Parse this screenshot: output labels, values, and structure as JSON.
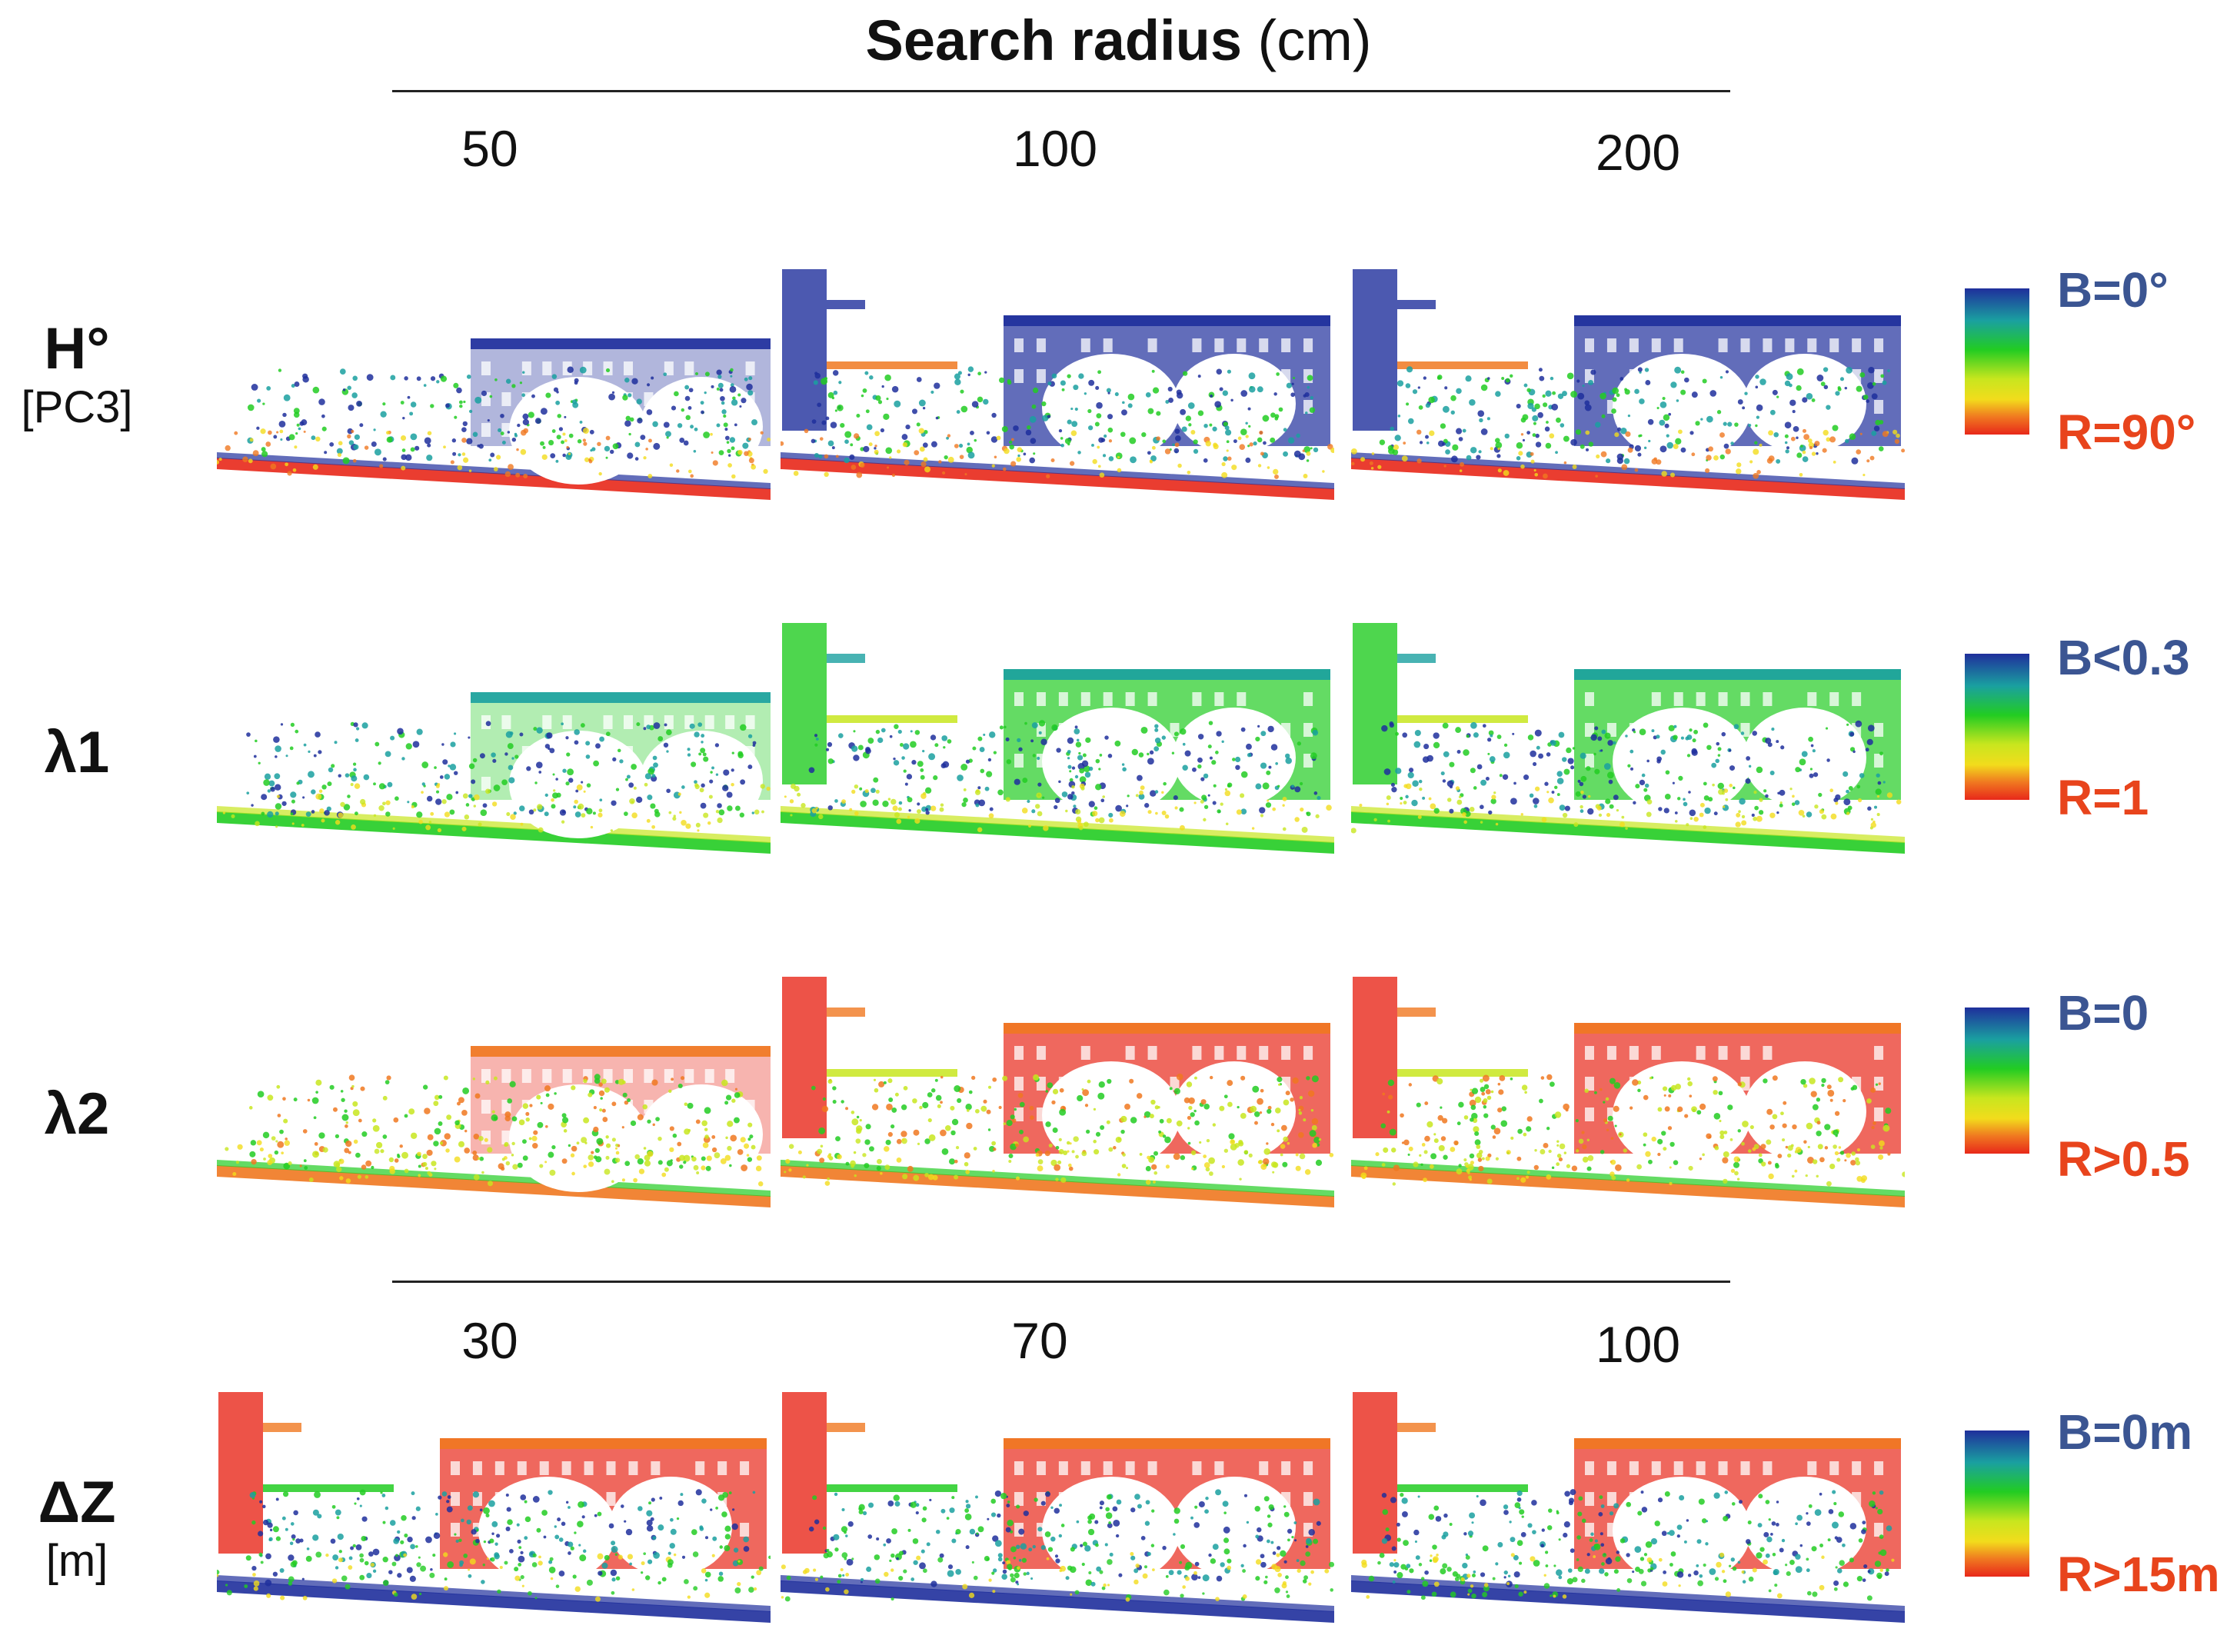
{
  "header": {
    "title_bold": "Search radius",
    "title_unit": "(cm)",
    "radii_top": [
      "50",
      "100",
      "200"
    ],
    "radii_bottom": [
      "30",
      "70",
      "100"
    ]
  },
  "rows": [
    {
      "label": "H°",
      "sublabel": "[PC3]",
      "legend_top": "B=0°",
      "legend_bottom": "R=90°",
      "scheme": "h"
    },
    {
      "label": "λ1",
      "sublabel": "",
      "legend_top": "B<0.3",
      "legend_bottom": "R=1",
      "scheme": "l1"
    },
    {
      "label": "λ2",
      "sublabel": "",
      "legend_top": "B=0",
      "legend_bottom": "R>0.5",
      "scheme": "l2"
    },
    {
      "label": "ΔZ",
      "sublabel": "[m]",
      "legend_top": "B=0m",
      "legend_bottom": "R>15m",
      "scheme": "dz"
    }
  ],
  "colors": {
    "legend_blue": "#3b5592",
    "legend_red": "#e8441c",
    "colormap": [
      "#1f2f9c",
      "#1aa0a0",
      "#22cc22",
      "#c8e61e",
      "#f2dc1c",
      "#f07820",
      "#e8281a"
    ]
  }
}
